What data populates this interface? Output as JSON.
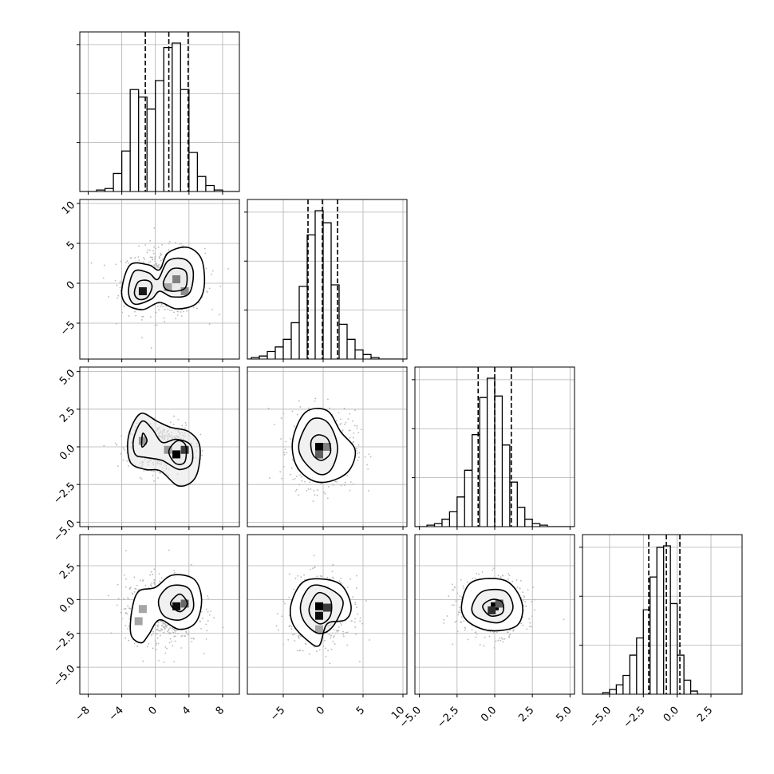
{
  "chart_data": {
    "type": "corner",
    "grid": true,
    "quantiles": [
      0.16,
      0.5,
      0.84
    ],
    "parameters": [
      {
        "range": [
          -9,
          10
        ],
        "ticks": [
          -8,
          -4,
          0,
          4,
          8
        ],
        "tick_labels": [
          "−8",
          "−4",
          "0",
          "4",
          "8"
        ],
        "hist_bins": [
          -6.5,
          -5.5,
          -4.5,
          -3.5,
          -2.5,
          -1.5,
          -0.5,
          0.5,
          1.5,
          2.5,
          3.5,
          4.5,
          5.5,
          6.5,
          7.5,
          8.5
        ],
        "hist_counts": [
          0.01,
          0.02,
          0.12,
          0.27,
          0.68,
          0.63,
          0.55,
          0.74,
          0.96,
          0.99,
          0.68,
          0.26,
          0.1,
          0.04,
          0.01,
          0.0
        ],
        "quantile_values": [
          -1.2,
          1.6,
          3.9
        ]
      },
      {
        "range": [
          -9.5,
          10.5
        ],
        "ticks": [
          -5,
          0,
          5,
          10
        ],
        "tick_labels": [
          "−5",
          "0",
          "5",
          "10"
        ],
        "hist_bins": [
          -8.5,
          -7.5,
          -6.5,
          -5.5,
          -4.5,
          -3.5,
          -2.5,
          -1.5,
          -0.5,
          0.5,
          1.5,
          2.5,
          3.5,
          4.5,
          5.5,
          6.5,
          7.5
        ],
        "hist_counts": [
          0.01,
          0.02,
          0.05,
          0.08,
          0.13,
          0.24,
          0.48,
          0.82,
          0.98,
          0.9,
          0.49,
          0.23,
          0.13,
          0.06,
          0.03,
          0.01,
          0.0
        ],
        "quantile_values": [
          -1.9,
          -0.1,
          1.8
        ]
      },
      {
        "range": [
          -5.3,
          5.3
        ],
        "ticks": [
          -5.0,
          -2.5,
          0.0,
          2.5,
          5.0
        ],
        "tick_labels": [
          "−5.0",
          "−2.5",
          "0.0",
          "2.5",
          "5.0"
        ],
        "hist_bins": [
          -4.25,
          -3.75,
          -3.25,
          -2.75,
          -2.25,
          -1.75,
          -1.25,
          -0.75,
          -0.25,
          0.25,
          0.75,
          1.25,
          1.75,
          2.25,
          2.75,
          3.25
        ],
        "hist_counts": [
          0.01,
          0.02,
          0.05,
          0.1,
          0.2,
          0.38,
          0.62,
          0.87,
          1.0,
          0.88,
          0.55,
          0.3,
          0.13,
          0.05,
          0.02,
          0.01
        ],
        "quantile_values": [
          -1.1,
          0.0,
          1.1
        ]
      },
      {
        "range": [
          -7,
          4.8
        ],
        "ticks": [
          -5.0,
          -2.5,
          0.0,
          2.5
        ],
        "tick_labels": [
          "−5.0",
          "−2.5",
          "0.0",
          "2.5"
        ],
        "hist_bins": [
          -5.75,
          -5.25,
          -4.75,
          -4.25,
          -3.75,
          -3.25,
          -2.75,
          -2.25,
          -1.75,
          -1.25,
          -0.75,
          -0.25,
          0.25,
          0.75,
          1.25,
          1.75
        ],
        "hist_counts": [
          0.0,
          0.01,
          0.03,
          0.06,
          0.12,
          0.25,
          0.36,
          0.54,
          0.75,
          0.94,
          0.95,
          0.58,
          0.25,
          0.09,
          0.02,
          0.0
        ],
        "quantile_values": [
          -2.1,
          -0.8,
          0.2
        ]
      }
    ],
    "pairs": [
      {
        "row": 1,
        "col": 0,
        "density_blocks": [
          {
            "x": -1.5,
            "y": -1,
            "v": 0.9
          },
          {
            "x": 2.5,
            "y": 0.5,
            "v": 0.45
          },
          {
            "x": 3.5,
            "y": -1,
            "v": 0.4
          },
          {
            "x": 1.5,
            "y": -0.5,
            "v": 0.3
          }
        ],
        "contours": [
          [
            [
              -2.5,
              -1.2
            ],
            [
              -2.0,
              0.2
            ],
            [
              -0.8,
              0.3
            ],
            [
              -0.4,
              -0.5
            ],
            [
              -1.0,
              -1.8
            ],
            [
              -2.0,
              -2.0
            ]
          ],
          [
            [
              -3.2,
              -1.0
            ],
            [
              -2.5,
              1.5
            ],
            [
              -0.8,
              1.3
            ],
            [
              0.3,
              0.5
            ],
            [
              1.5,
              2.8
            ],
            [
              3.5,
              3.0
            ],
            [
              4.5,
              1.5
            ],
            [
              4.0,
              -1.3
            ],
            [
              2.0,
              -1.7
            ],
            [
              0.5,
              -1.0
            ],
            [
              -0.5,
              -2.0
            ],
            [
              -2.5,
              -2.6
            ]
          ],
          [
            [
              -4.0,
              -0.8
            ],
            [
              -3.0,
              2.3
            ],
            [
              -0.8,
              2.3
            ],
            [
              0.5,
              1.7
            ],
            [
              1.5,
              3.8
            ],
            [
              3.8,
              4.5
            ],
            [
              5.5,
              3.0
            ],
            [
              5.8,
              -0.5
            ],
            [
              4.8,
              -2.6
            ],
            [
              2.5,
              -3.2
            ],
            [
              0.5,
              -2.4
            ],
            [
              -1.5,
              -3.3
            ],
            [
              -3.5,
              -2.6
            ]
          ],
          [
            [
              1.0,
              0.3
            ],
            [
              2.0,
              1.8
            ],
            [
              3.6,
              1.5
            ],
            [
              3.6,
              -0.5
            ],
            [
              2.3,
              -1.0
            ],
            [
              1.2,
              -0.7
            ]
          ]
        ]
      },
      {
        "row": 2,
        "col": 0,
        "density_blocks": [
          {
            "x": 2.5,
            "y": -0.5,
            "v": 1.0
          },
          {
            "x": 3.5,
            "y": -0.2,
            "v": 0.75
          },
          {
            "x": -1.5,
            "y": 0.4,
            "v": 0.35
          },
          {
            "x": 1.5,
            "y": -0.2,
            "v": 0.35
          }
        ],
        "contours": [
          [
            [
              -1.5,
              0.9
            ],
            [
              -1.0,
              0.4
            ],
            [
              -1.6,
              0.0
            ]
          ],
          [
            [
              -2.6,
              0.5
            ],
            [
              -1.6,
              1.7
            ],
            [
              -0.4,
              1.2
            ],
            [
              0.8,
              0.3
            ],
            [
              2.5,
              0.5
            ],
            [
              4.2,
              0.1
            ],
            [
              4.3,
              -1.1
            ],
            [
              2.8,
              -1.5
            ],
            [
              0.8,
              -0.9
            ],
            [
              -1.2,
              -0.7
            ],
            [
              -2.4,
              -0.5
            ]
          ],
          [
            [
              -3.2,
              0.7
            ],
            [
              -1.8,
              2.2
            ],
            [
              0.2,
              1.7
            ],
            [
              1.8,
              1.3
            ],
            [
              4.0,
              1.0
            ],
            [
              5.3,
              0.0
            ],
            [
              4.8,
              -2.0
            ],
            [
              2.8,
              -2.6
            ],
            [
              0.6,
              -1.6
            ],
            [
              -1.2,
              -1.5
            ],
            [
              -3.0,
              -1.0
            ]
          ],
          [
            [
              1.6,
              -0.3
            ],
            [
              2.6,
              0.4
            ],
            [
              3.6,
              0.1
            ],
            [
              3.5,
              -1.0
            ],
            [
              2.4,
              -1.1
            ]
          ]
        ]
      },
      {
        "row": 2,
        "col": 1,
        "density_blocks": [
          {
            "x": -0.5,
            "y": 0.0,
            "v": 1.0
          },
          {
            "x": -0.5,
            "y": -0.5,
            "v": 0.6
          },
          {
            "x": 0.5,
            "y": 0.0,
            "v": 0.45
          }
        ],
        "contours": [
          [
            [
              -1.5,
              0.4
            ],
            [
              -0.6,
              0.8
            ],
            [
              0.6,
              0.5
            ],
            [
              0.9,
              -0.4
            ],
            [
              -0.2,
              -0.9
            ],
            [
              -1.3,
              -0.5
            ]
          ],
          [
            [
              -3.0,
              0.3
            ],
            [
              -1.5,
              1.8
            ],
            [
              0.6,
              1.6
            ],
            [
              1.8,
              0.0
            ],
            [
              1.0,
              -1.5
            ],
            [
              -0.6,
              -1.8
            ],
            [
              -2.6,
              -0.8
            ]
          ],
          [
            [
              -3.8,
              0.5
            ],
            [
              -2.2,
              2.3
            ],
            [
              0.5,
              2.4
            ],
            [
              2.2,
              1.0
            ],
            [
              4.0,
              -0.2
            ],
            [
              3.2,
              -1.6
            ],
            [
              0.8,
              -2.3
            ],
            [
              -1.5,
              -2.2
            ],
            [
              -3.4,
              -1.2
            ]
          ]
        ]
      },
      {
        "row": 3,
        "col": 0,
        "density_blocks": [
          {
            "x": 2.5,
            "y": -0.5,
            "v": 0.95
          },
          {
            "x": 3.5,
            "y": -0.3,
            "v": 0.55
          },
          {
            "x": -2.0,
            "y": -1.6,
            "v": 0.3
          },
          {
            "x": -1.5,
            "y": -0.7,
            "v": 0.3
          }
        ],
        "contours": [
          [
            [
              1.8,
              -0.3
            ],
            [
              2.9,
              0.4
            ],
            [
              3.8,
              -0.3
            ],
            [
              2.9,
              -0.9
            ]
          ],
          [
            [
              0.4,
              0.0
            ],
            [
              1.8,
              1.0
            ],
            [
              4.0,
              0.8
            ],
            [
              4.5,
              -0.7
            ],
            [
              3.0,
              -1.5
            ],
            [
              1.0,
              -1.2
            ]
          ],
          [
            [
              -2.8,
              -0.8
            ],
            [
              -2.0,
              0.6
            ],
            [
              0.0,
              0.9
            ],
            [
              2.0,
              1.8
            ],
            [
              4.6,
              1.5
            ],
            [
              5.5,
              0.0
            ],
            [
              4.8,
              -1.7
            ],
            [
              2.8,
              -2.2
            ],
            [
              0.5,
              -1.5
            ],
            [
              -0.8,
              -2.6
            ],
            [
              -1.7,
              -3.2
            ],
            [
              -2.9,
              -2.6
            ]
          ]
        ]
      },
      {
        "row": 3,
        "col": 1,
        "density_blocks": [
          {
            "x": -0.5,
            "y": -0.5,
            "v": 1.0
          },
          {
            "x": -0.5,
            "y": -1.2,
            "v": 0.95
          },
          {
            "x": 0.5,
            "y": -0.6,
            "v": 0.75
          },
          {
            "x": -0.5,
            "y": -2.2,
            "v": 0.3
          }
        ],
        "contours": [
          [
            [
              -1.7,
              -0.5
            ],
            [
              -0.6,
              0.5
            ],
            [
              0.9,
              0.0
            ],
            [
              0.9,
              -1.2
            ],
            [
              -0.3,
              -1.8
            ],
            [
              -1.5,
              -1.3
            ]
          ],
          [
            [
              -2.8,
              -0.3
            ],
            [
              -1.5,
              1.0
            ],
            [
              0.8,
              0.8
            ],
            [
              2.5,
              -0.2
            ],
            [
              1.2,
              -2.0
            ],
            [
              -0.6,
              -2.5
            ],
            [
              -2.4,
              -1.6
            ]
          ],
          [
            [
              -4.0,
              -0.3
            ],
            [
              -2.5,
              1.3
            ],
            [
              0.2,
              1.5
            ],
            [
              2.4,
              1.0
            ],
            [
              3.5,
              -0.5
            ],
            [
              2.8,
              -1.5
            ],
            [
              0.5,
              -1.8
            ],
            [
              -0.5,
              -3.4
            ],
            [
              -2.0,
              -3.0
            ],
            [
              -3.8,
              -1.8
            ]
          ]
        ]
      },
      {
        "row": 3,
        "col": 2,
        "density_blocks": [
          {
            "x": 0.0,
            "y": -0.5,
            "v": 1.0
          },
          {
            "x": -0.2,
            "y": -0.8,
            "v": 0.8
          },
          {
            "x": 0.3,
            "y": -0.3,
            "v": 0.6
          }
        ],
        "contours": [
          [
            [
              -0.8,
              -0.5
            ],
            [
              -0.2,
              0.0
            ],
            [
              0.5,
              -0.2
            ],
            [
              0.5,
              -1.0
            ],
            [
              -0.3,
              -1.2
            ]
          ],
          [
            [
              -1.5,
              -0.5
            ],
            [
              -0.8,
              0.6
            ],
            [
              0.7,
              0.6
            ],
            [
              1.2,
              -0.7
            ],
            [
              0.3,
              -1.7
            ],
            [
              -1.2,
              -1.3
            ]
          ],
          [
            [
              -2.2,
              -0.4
            ],
            [
              -1.5,
              1.3
            ],
            [
              0.7,
              1.4
            ],
            [
              1.8,
              -0.2
            ],
            [
              1.5,
              -1.9
            ],
            [
              -0.3,
              -2.3
            ],
            [
              -1.8,
              -1.6
            ]
          ]
        ]
      }
    ]
  }
}
